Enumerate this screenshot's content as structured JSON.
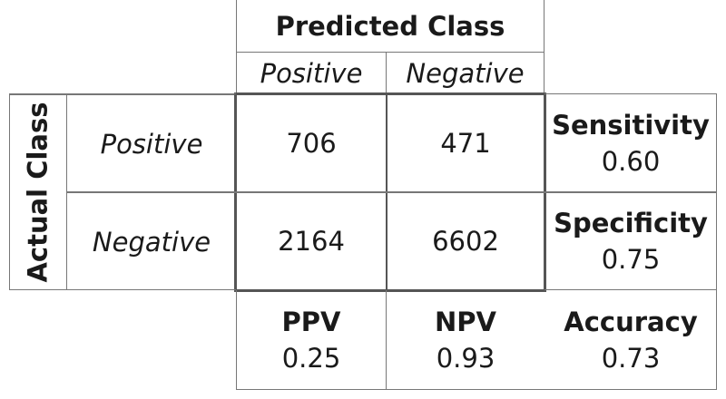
{
  "predicted_header": "Predicted Class",
  "actual_header": "Actual Class",
  "columns": [
    "Positive",
    "Negative"
  ],
  "rows": [
    {
      "label": "Positive",
      "values": [
        "706",
        "471"
      ],
      "metric": {
        "name": "Sensitivity",
        "value": "0.60"
      }
    },
    {
      "label": "Negative",
      "values": [
        "2164",
        "6602"
      ],
      "metric": {
        "name": "Specificity",
        "value": "0.75"
      }
    }
  ],
  "bottom": [
    {
      "name": "PPV",
      "value": "0.25"
    },
    {
      "name": "NPV",
      "value": "0.93"
    },
    {
      "name": "Accuracy",
      "value": "0.73"
    }
  ]
}
